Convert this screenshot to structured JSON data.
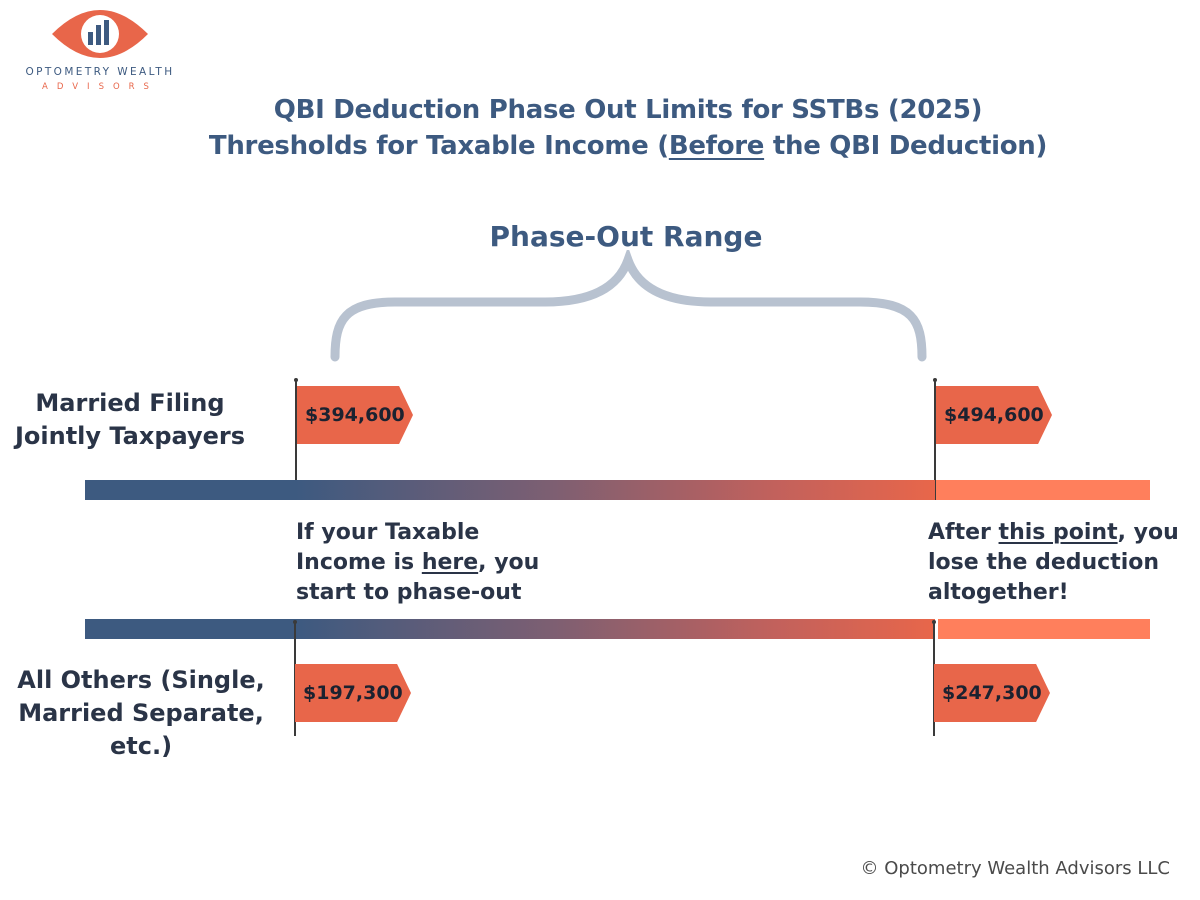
{
  "logo": {
    "line1": "OPTOMETRY WEALTH",
    "line2": "ADVISORS",
    "eye_color": "#e8664a",
    "bars_color": "#3d5a80"
  },
  "title": {
    "line1": "QBI Deduction Phase Out Limits for SSTBs (2025)",
    "line2_pre": "Thresholds for Taxable Income (",
    "line2_underlined": "Before",
    "line2_post": " the QBI Deduction)"
  },
  "range_label": "Phase-Out Range",
  "rows": [
    {
      "label_line1": "Married Filing",
      "label_line2": "Jointly Taxpayers",
      "start_threshold": "$394,600",
      "end_threshold": "$494,600"
    },
    {
      "label_line1": "All Others (Single,",
      "label_line2": "Married Separate,",
      "label_line3": "etc.)",
      "start_threshold": "$197,300",
      "end_threshold": "$247,300"
    }
  ],
  "annotations": {
    "start": {
      "line1": "If your Taxable",
      "line2_pre": "Income is ",
      "line2_underlined": "here",
      "line2_post": ", you",
      "line3": "start to phase-out"
    },
    "end": {
      "line1_pre": "After ",
      "line1_underlined": "this point",
      "line1_post": ", you",
      "line2": "lose the deduction",
      "line3": "altogether!"
    }
  },
  "colors": {
    "navy": "#3d5a80",
    "orange": "#e8664a",
    "light_orange": "#ff7f5c",
    "brace": "#b8c2d0"
  },
  "copyright": "© Optometry Wealth Advisors LLC"
}
